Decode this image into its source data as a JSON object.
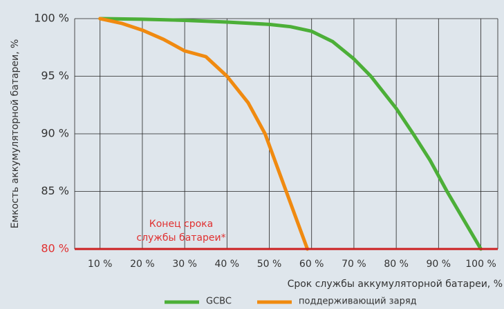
{
  "chart_data": {
    "type": "line",
    "ylabel": "Емкость аккумуляторной батареи, %",
    "xlabel": "Срок службы аккумуляторной батареи, %",
    "annotation": [
      "Конец срока",
      "службы батареи*"
    ],
    "annotation_color": "#e03030",
    "baseline_color": "#cc1f1f",
    "xlim": [
      4,
      104
    ],
    "ylim": [
      80,
      100
    ],
    "xticks": [
      {
        "value": 10,
        "label": "10 %"
      },
      {
        "value": 20,
        "label": "20 %"
      },
      {
        "value": 30,
        "label": "30 %"
      },
      {
        "value": 40,
        "label": "40 %"
      },
      {
        "value": 50,
        "label": "50 %"
      },
      {
        "value": 60,
        "label": "60 %"
      },
      {
        "value": 70,
        "label": "70 %"
      },
      {
        "value": 80,
        "label": "80 %"
      },
      {
        "value": 90,
        "label": "90 %"
      },
      {
        "value": 100,
        "label": "100 %"
      }
    ],
    "yticks": [
      {
        "value": 80,
        "label": "80 %"
      },
      {
        "value": 85,
        "label": "85 %"
      },
      {
        "value": 90,
        "label": "90 %"
      },
      {
        "value": 95,
        "label": "95 %"
      },
      {
        "value": 100,
        "label": "100 %"
      }
    ],
    "grid": true,
    "series": [
      {
        "name": "GCBC",
        "color": "#4caf38",
        "x": [
          10,
          20,
          30,
          40,
          50,
          55,
          60,
          65,
          70,
          74,
          80,
          84,
          88,
          92,
          96,
          100
        ],
        "values": [
          100,
          99.95,
          99.85,
          99.7,
          99.5,
          99.3,
          98.9,
          98,
          96.5,
          95,
          92.2,
          90,
          87.7,
          85,
          82.5,
          80
        ]
      },
      {
        "name": "поддерживающий заряд",
        "color": "#f08a10",
        "x": [
          10,
          15,
          20,
          25,
          30,
          35,
          40,
          45,
          49,
          54,
          59
        ],
        "values": [
          100,
          99.6,
          99,
          98.2,
          97.2,
          96.7,
          95,
          92.7,
          90,
          85,
          80
        ]
      }
    ]
  }
}
